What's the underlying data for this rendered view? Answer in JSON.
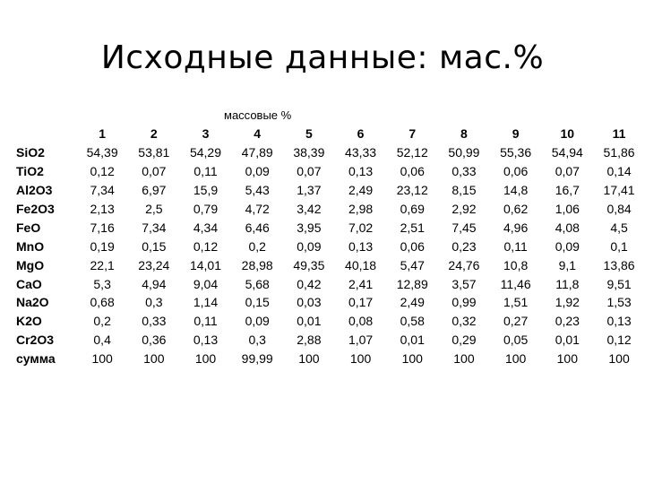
{
  "page": {
    "title": "Исходные данные: мас.%",
    "table_caption": "массовые %"
  },
  "table": {
    "columns": [
      "1",
      "2",
      "3",
      "4",
      "5",
      "6",
      "7",
      "8",
      "9",
      "10",
      "11"
    ],
    "rows": [
      {
        "label": "SiO2",
        "values": [
          "54,39",
          "53,81",
          "54,29",
          "47,89",
          "38,39",
          "43,33",
          "52,12",
          "50,99",
          "55,36",
          "54,94",
          "51,86"
        ]
      },
      {
        "label": "TiO2",
        "values": [
          "0,12",
          "0,07",
          "0,11",
          "0,09",
          "0,07",
          "0,13",
          "0,06",
          "0,33",
          "0,06",
          "0,07",
          "0,14"
        ]
      },
      {
        "label": "Al2O3",
        "values": [
          "7,34",
          "6,97",
          "15,9",
          "5,43",
          "1,37",
          "2,49",
          "23,12",
          "8,15",
          "14,8",
          "16,7",
          "17,41"
        ]
      },
      {
        "label": "Fe2O3",
        "values": [
          "2,13",
          "2,5",
          "0,79",
          "4,72",
          "3,42",
          "2,98",
          "0,69",
          "2,92",
          "0,62",
          "1,06",
          "0,84"
        ]
      },
      {
        "label": "FeO",
        "values": [
          "7,16",
          "7,34",
          "4,34",
          "6,46",
          "3,95",
          "7,02",
          "2,51",
          "7,45",
          "4,96",
          "4,08",
          "4,5"
        ]
      },
      {
        "label": "MnO",
        "values": [
          "0,19",
          "0,15",
          "0,12",
          "0,2",
          "0,09",
          "0,13",
          "0,06",
          "0,23",
          "0,11",
          "0,09",
          "0,1"
        ]
      },
      {
        "label": "MgO",
        "values": [
          "22,1",
          "23,24",
          "14,01",
          "28,98",
          "49,35",
          "40,18",
          "5,47",
          "24,76",
          "10,8",
          "9,1",
          "13,86"
        ]
      },
      {
        "label": "CaO",
        "values": [
          "5,3",
          "4,94",
          "9,04",
          "5,68",
          "0,42",
          "2,41",
          "12,89",
          "3,57",
          "11,46",
          "11,8",
          "9,51"
        ]
      },
      {
        "label": "Na2O",
        "values": [
          "0,68",
          "0,3",
          "1,14",
          "0,15",
          "0,03",
          "0,17",
          "2,49",
          "0,99",
          "1,51",
          "1,92",
          "1,53"
        ]
      },
      {
        "label": "K2O",
        "values": [
          "0,2",
          "0,33",
          "0,11",
          "0,09",
          "0,01",
          "0,08",
          "0,58",
          "0,32",
          "0,27",
          "0,23",
          "0,13"
        ]
      },
      {
        "label": "Cr2O3",
        "values": [
          "0,4",
          "0,36",
          "0,13",
          "0,3",
          "2,88",
          "1,07",
          "0,01",
          "0,29",
          "0,05",
          "0,01",
          "0,12"
        ]
      },
      {
        "label": "сумма",
        "values": [
          "100",
          "100",
          "100",
          "99,99",
          "100",
          "100",
          "100",
          "100",
          "100",
          "100",
          "100"
        ]
      }
    ]
  }
}
